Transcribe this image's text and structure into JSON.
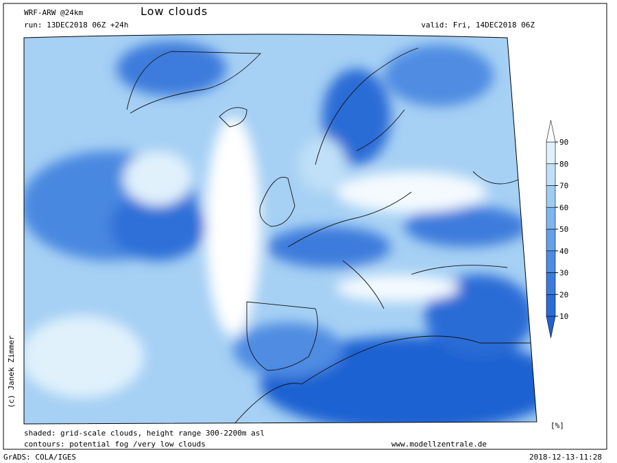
{
  "header": {
    "model": "WRF-ARW @24km",
    "title": "Low clouds",
    "run": "run: 13DEC2018 06Z +24h",
    "valid": "valid: Fri, 14DEC2018 06Z"
  },
  "copyright": "(c) Janek Zimmer",
  "colorbar": {
    "unit": "[%]",
    "ticks": [
      10,
      20,
      30,
      40,
      50,
      60,
      70,
      80,
      90
    ],
    "colors": [
      "#1f62d2",
      "#2c6cd6",
      "#3c7bdc",
      "#4f8ce2",
      "#659fe8",
      "#80b6ee",
      "#a0cbf3",
      "#c0e0f8",
      "#e0f1fc",
      "#ffffff"
    ]
  },
  "footer": {
    "shaded": "shaded: grid-scale clouds, height range 300-2200m asl",
    "contours": "contours: potential fog /very low clouds",
    "website": "www.modellzentrale.de",
    "software": "GrADS: COLA/IGES",
    "timestamp": "2018-12-13-11:28"
  }
}
